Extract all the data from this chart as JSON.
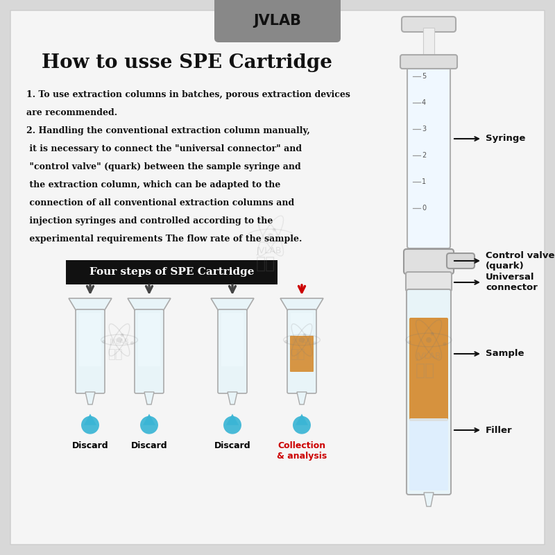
{
  "bg_color": "#d8d8d8",
  "panel_color": "#f5f5f5",
  "title": "How to usse SPE Cartridge",
  "title_fontsize": 20,
  "tab_color": "#888888",
  "tab_text": "JVLAB",
  "line1": "1. To use extraction columns in batches, porous extraction devices",
  "line2": "are recommended.",
  "line3": "2. Handling the conventional extraction column manually,",
  "line4": " it is necessary to connect the \"universal connector\" and",
  "line5": " \"control valve\" (quark) between the sample syringe and",
  "line6": " the extraction column, which can be adapted to the",
  "line7": " connection of all conventional extraction columns and",
  "line8": " injection syringes and controlled according to the",
  "line9": " experimental requirements The flow rate of the sample.",
  "steps_label": "Four steps of SPE Cartridge",
  "labels_right": [
    "Syringe",
    "Control valve\n(quark)",
    "Universal\nconnector",
    "Sample",
    "Filler"
  ],
  "drop_labels": [
    "Discard",
    "Discard",
    "Discard",
    "Collection\n& analysis"
  ],
  "drop_label_colors": [
    "#000000",
    "#000000",
    "#000000",
    "#cc0000"
  ],
  "arrow_color_down": "#444444",
  "arrow_red": "#cc0000",
  "sample_color": "#d4882a",
  "drop_color": "#3ab5d5",
  "watermark_text": "JVLAB",
  "watermark_cn": "见微"
}
